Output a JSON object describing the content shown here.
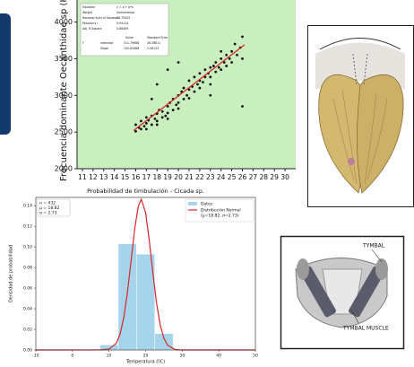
{
  "chart_data": [
    {
      "type": "scatter",
      "ylabel": "Frecuencia dominante Oecanthidae sp (Hz)",
      "background": "#c9efbf",
      "x": [
        16,
        16,
        16.3,
        16.5,
        16.5,
        16.8,
        17,
        17,
        17,
        17.2,
        17.5,
        17.5,
        17.8,
        18,
        18,
        18,
        18.2,
        18.5,
        18.5,
        18.8,
        19,
        19,
        19,
        19.2,
        19.5,
        19.5,
        19.8,
        20,
        20,
        20,
        20.3,
        20.5,
        20.5,
        20.8,
        21,
        21,
        21,
        21.3,
        21.5,
        21.5,
        21.8,
        22,
        22,
        22,
        22.3,
        22.5,
        22.5,
        22.8,
        23,
        23,
        23,
        23.3,
        23.5,
        23.5,
        23.8,
        24,
        24,
        24,
        24.3,
        24.5,
        24.5,
        24.8,
        25,
        25,
        25.3,
        25.5,
        25.8,
        26,
        26,
        18,
        19,
        17.5,
        20,
        26,
        23
      ],
      "values": [
        2510,
        2600,
        2560,
        2540,
        2650,
        2580,
        2620,
        2700,
        2540,
        2660,
        2600,
        2720,
        2680,
        2750,
        2650,
        2600,
        2800,
        2700,
        2780,
        2720,
        2850,
        2760,
        2680,
        2900,
        2800,
        2950,
        2870,
        2900,
        3000,
        2820,
        3050,
        2950,
        3100,
        3000,
        3080,
        2960,
        3200,
        3120,
        3050,
        3250,
        3150,
        3200,
        3100,
        3300,
        3180,
        3350,
        3250,
        3300,
        3380,
        3250,
        3150,
        3400,
        3320,
        3450,
        3380,
        3500,
        3350,
        3600,
        3450,
        3550,
        3400,
        3500,
        3600,
        3450,
        3700,
        3550,
        3650,
        3800,
        3500,
        3150,
        3350,
        2950,
        3450,
        2850,
        3000
      ],
      "color": "#111111",
      "fit_line": {
        "x": [
          15.8,
          26.2
        ],
        "values": [
          2520,
          3690
        ],
        "color": "#d62728"
      },
      "xlim": [
        10.5,
        31
      ],
      "ylim": [
        2000,
        4300
      ],
      "xticks": [
        11,
        12,
        13,
        14,
        15,
        16,
        17,
        18,
        19,
        20,
        21,
        22,
        23,
        24,
        25,
        26,
        27,
        28,
        29,
        30
      ],
      "yticks": [
        2000,
        2500,
        3000,
        3500,
        4000
      ],
      "inset": {
        "rows": [
          [
            "Equation",
            "y = a + b*x"
          ],
          [
            "Weight",
            "Instrumental"
          ],
          [
            "Residual Sum of Squares",
            "48.75443"
          ],
          [
            "Pearson's r",
            "0.94114"
          ],
          [
            "Adj. R-Square",
            "0.88409"
          ]
        ],
        "header": [
          "Value",
          "Standard Error"
        ],
        "group": "F",
        "coef": [
          [
            "Intercept",
            "511.79988",
            "26.26611"
          ],
          [
            "Slope",
            "102.83468",
            "1.56123"
          ]
        ]
      }
    },
    {
      "type": "histogram",
      "title": "Probabilidad de timbulación - Cicada sp.",
      "xlabel": "Temperatura (ºC)",
      "ylabel": "Densidad de probabilidad",
      "bins": [
        7.5,
        12.5,
        17.5,
        22.5,
        27.5
      ],
      "values": [
        0.005,
        0.103,
        0.093,
        0.016
      ],
      "color": "#a6d4ea",
      "bar_name": "Datos",
      "curve": {
        "name": "Distribución Normal",
        "name_detail": "(μ=18.82, σ=2.73)",
        "color": "#d62728",
        "x": [
          -10,
          8,
          10,
          12,
          13,
          14,
          15,
          16,
          17,
          18,
          18.82,
          20,
          21,
          22,
          23,
          24,
          25,
          26,
          28,
          30,
          50
        ],
        "y": [
          0,
          0.0001,
          0.0008,
          0.0065,
          0.0151,
          0.0307,
          0.0549,
          0.0857,
          0.117,
          0.1397,
          0.1461,
          0.1331,
          0.1062,
          0.0742,
          0.0452,
          0.0241,
          0.0113,
          0.0046,
          0.0005,
          0,
          0
        ]
      },
      "stats": [
        "n = 432",
        "μ = 18.82",
        "σ = 2.73"
      ],
      "xlim": [
        -10,
        50
      ],
      "ylim": [
        0,
        0.148
      ],
      "xticks": [
        -10,
        0,
        10,
        20,
        30,
        40,
        50
      ],
      "yticks": [
        {
          "value": 0,
          "label": "0.00"
        },
        {
          "value": 0.02,
          "label": "0.02"
        },
        {
          "value": 0.04,
          "label": "0.04"
        },
        {
          "value": 0.06,
          "label": "0.06"
        },
        {
          "value": 0.08,
          "label": "0.08"
        },
        {
          "value": 0.1,
          "label": "0.10"
        },
        {
          "value": 0.12,
          "label": "0.12"
        },
        {
          "value": 0.14,
          "label": "0.14"
        }
      ]
    }
  ],
  "diagram": {
    "labels": [
      "TYMBAL",
      "TYMBAL MUSCLE"
    ]
  }
}
